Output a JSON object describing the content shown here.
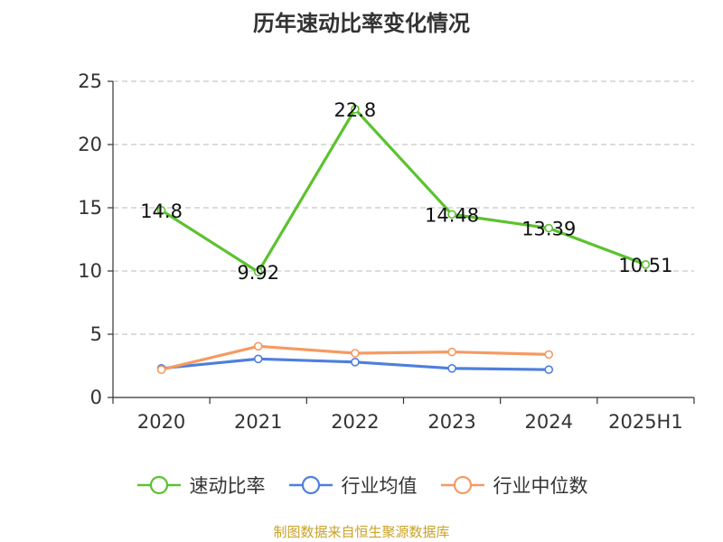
{
  "chart_data": {
    "type": "line",
    "title": "历年速动比率变化情况",
    "categories": [
      "2020",
      "2021",
      "2022",
      "2023",
      "2024",
      "2025H1"
    ],
    "ylim": [
      0,
      25
    ],
    "yticks": [
      0,
      5,
      10,
      15,
      20,
      25
    ],
    "grid": true,
    "legend_position": "bottom",
    "series": [
      {
        "name": "速动比率",
        "color": "#5cc22f",
        "values": [
          14.8,
          9.92,
          22.8,
          14.48,
          13.39,
          10.51
        ],
        "labels": [
          "14.8",
          "9.92",
          "22.8",
          "14.48",
          "13.39",
          "10.51"
        ]
      },
      {
        "name": "行业均值",
        "color": "#4e7fdc",
        "values": [
          2.3,
          3.05,
          2.8,
          2.3,
          2.2,
          null
        ]
      },
      {
        "name": "行业中位数",
        "color": "#f59a62",
        "values": [
          2.2,
          4.05,
          3.5,
          3.6,
          3.4,
          null
        ]
      }
    ]
  },
  "source_text": "制图数据来自恒生聚源数据库"
}
